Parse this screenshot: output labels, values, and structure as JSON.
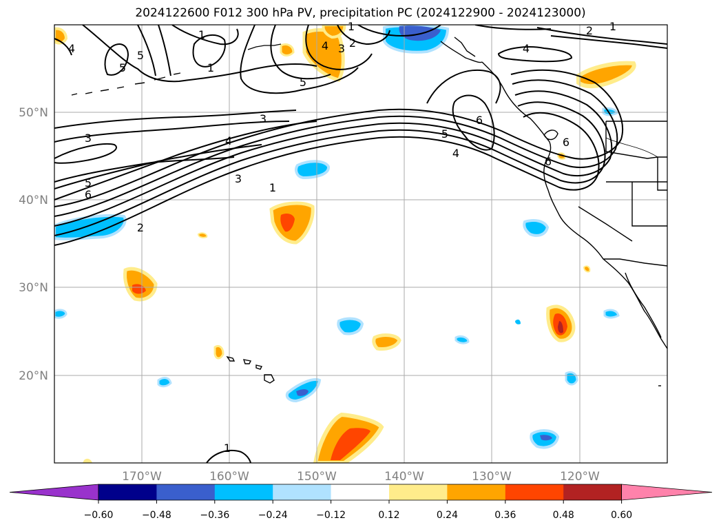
{
  "title": "2024122600 F012 300 hPa PV, precipitation PC (2024122900 - 2024123000)",
  "map": {
    "lat_labels": [
      "50°N",
      "40°N",
      "30°N",
      "20°N"
    ],
    "lon_labels": [
      "170°W",
      "160°W",
      "150°W",
      "140°W",
      "130°W",
      "120°W"
    ],
    "contour_labels": [
      "1",
      "1",
      "1",
      "1",
      "1",
      "2",
      "2",
      "2",
      "3",
      "3",
      "3",
      "3",
      "4",
      "4",
      "4",
      "4",
      "4",
      "5",
      "5",
      "5",
      "5",
      "5",
      "6",
      "6",
      "6",
      "6",
      "1"
    ],
    "gridline_color": "#aaaaaa",
    "coast_color": "#000000"
  },
  "colorbar": {
    "ticks": [
      "−0.60",
      "−0.48",
      "−0.36",
      "−0.24",
      "−0.12",
      "0.12",
      "0.24",
      "0.36",
      "0.48",
      "0.60"
    ],
    "colors": [
      "#9932cc",
      "#00008b",
      "#3a5fcd",
      "#00bfff",
      "#b0e2ff",
      "#ffffff",
      "#ffec8b",
      "#ffa500",
      "#ff4500",
      "#b22222",
      "#ff82ab"
    ]
  }
}
